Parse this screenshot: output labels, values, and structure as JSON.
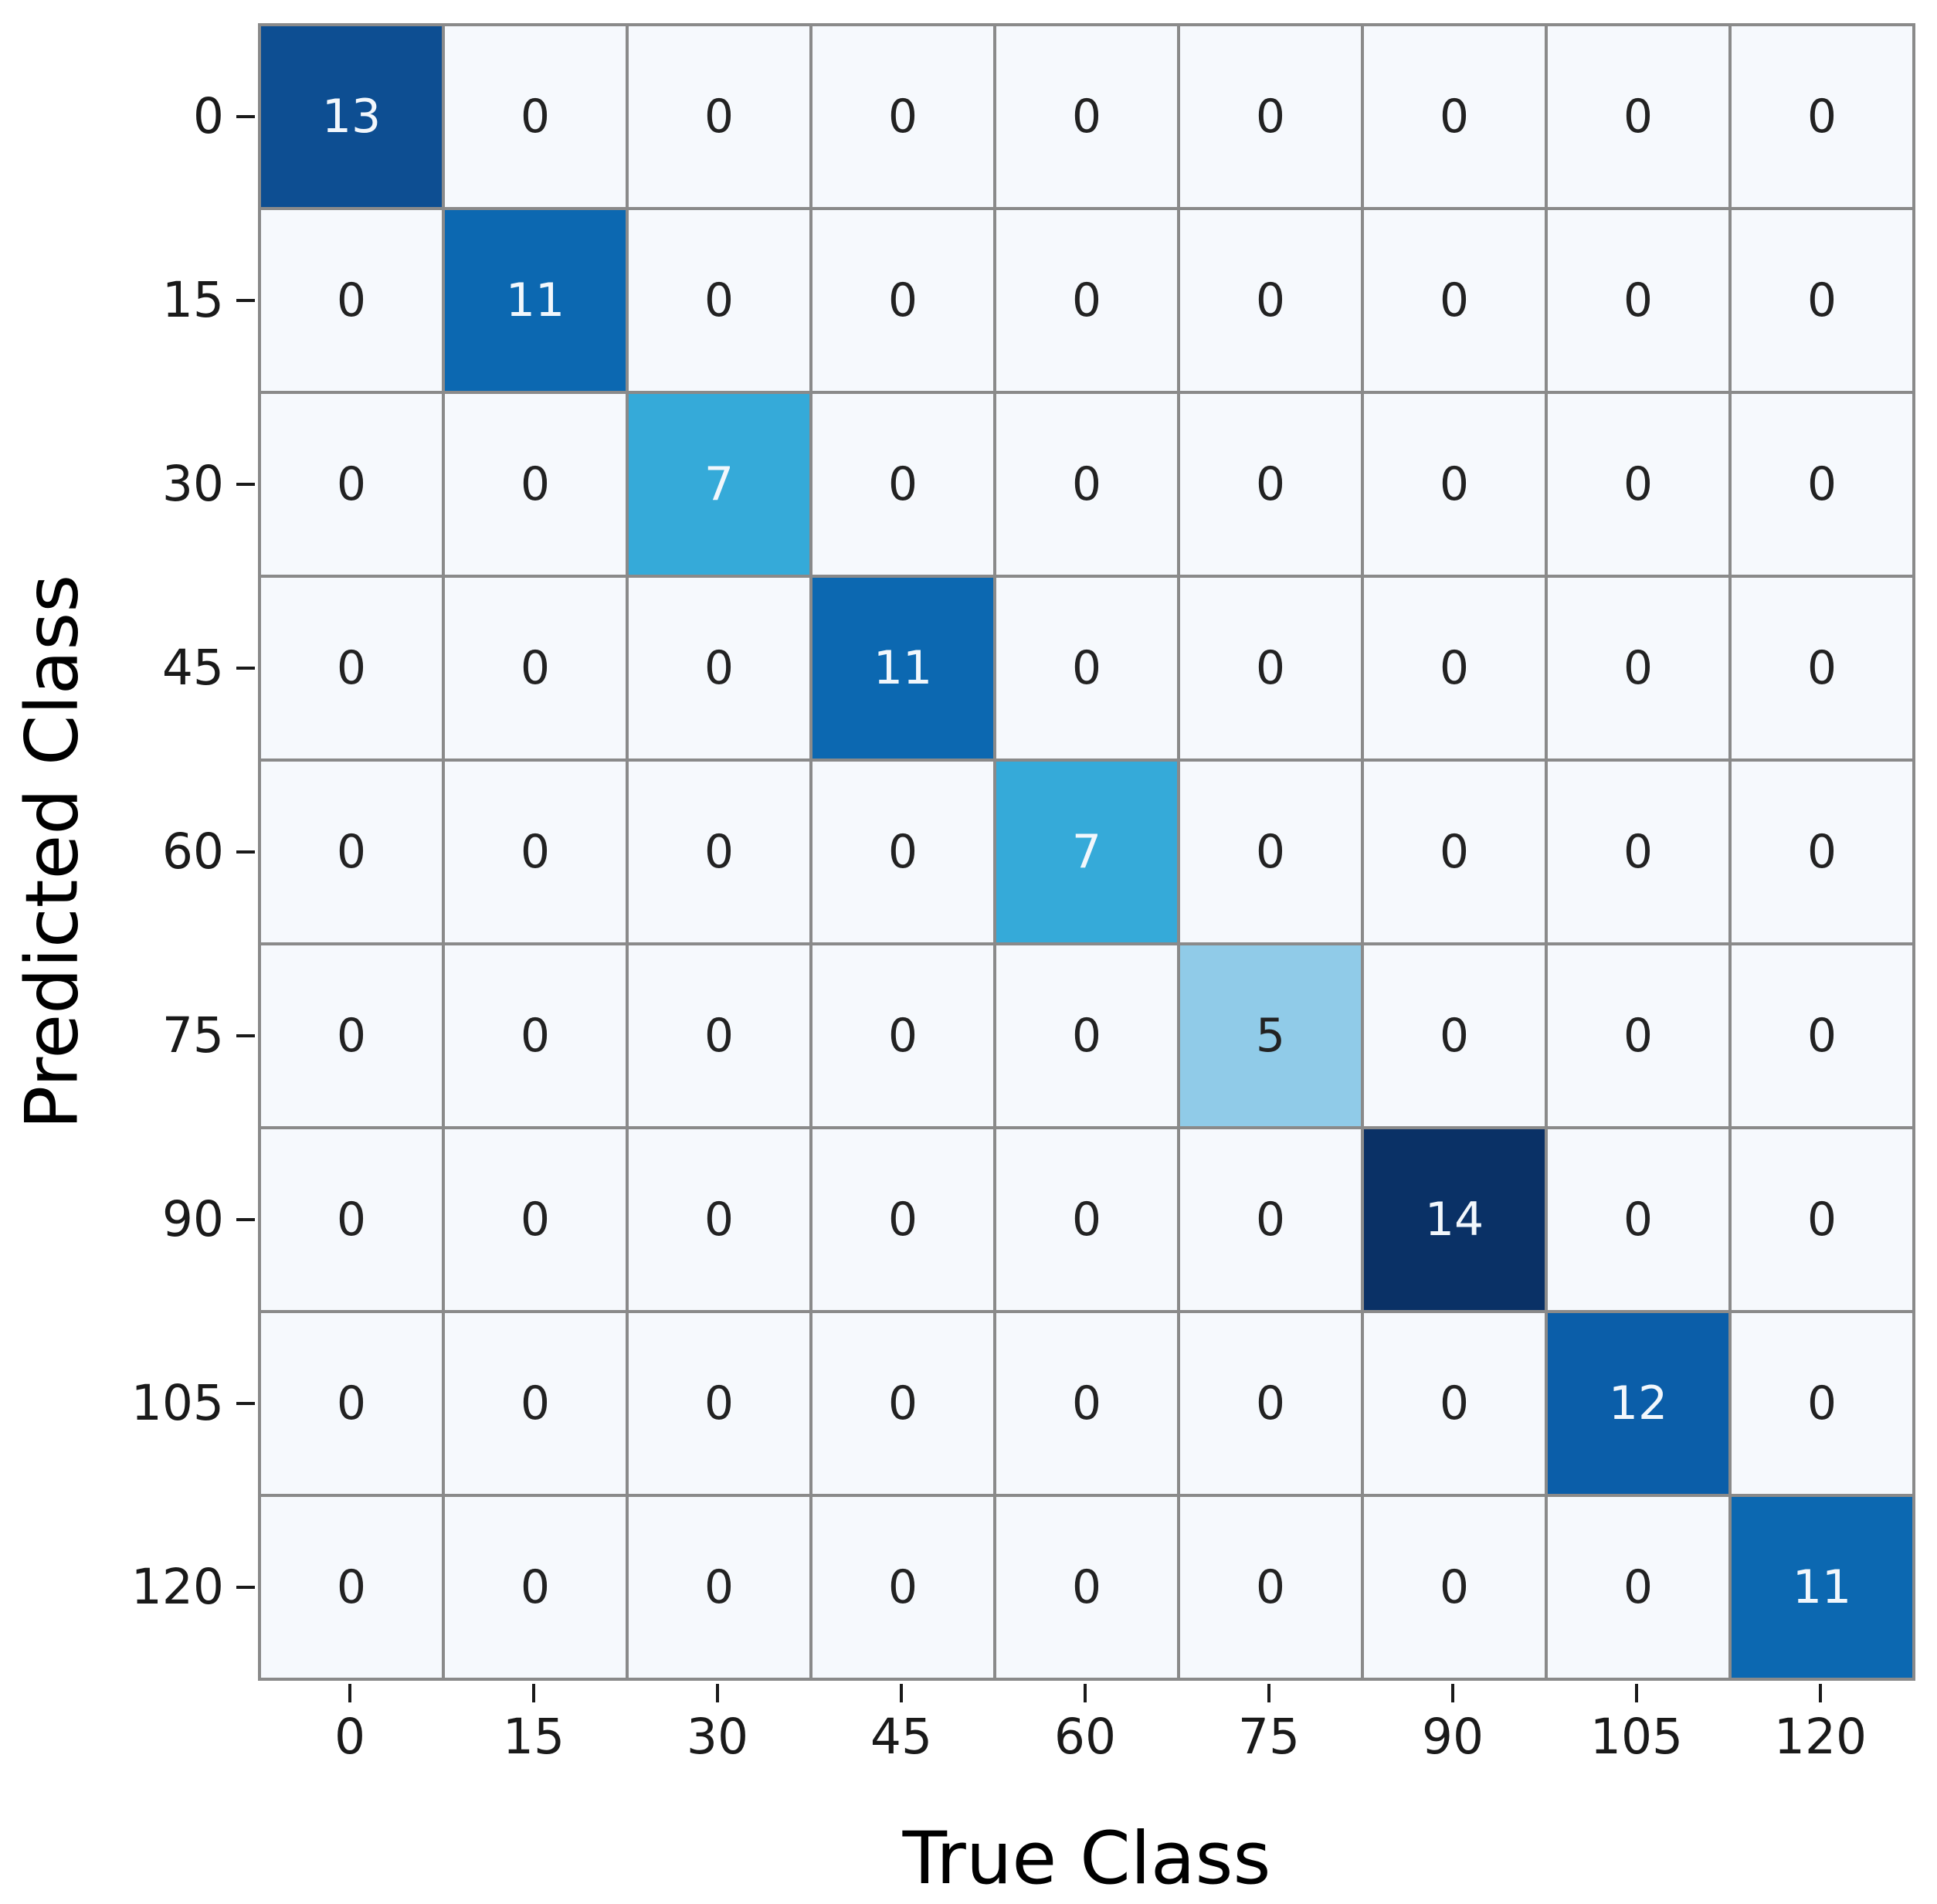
{
  "chart_data": {
    "type": "heatmap",
    "title": "",
    "xlabel": "True Class",
    "ylabel": "Predicted Class",
    "x_tick_labels": [
      "0",
      "15",
      "30",
      "45",
      "60",
      "75",
      "90",
      "105",
      "120"
    ],
    "y_tick_labels": [
      "0",
      "15",
      "30",
      "45",
      "60",
      "75",
      "90",
      "105",
      "120"
    ],
    "matrix": [
      [
        13,
        0,
        0,
        0,
        0,
        0,
        0,
        0,
        0
      ],
      [
        0,
        11,
        0,
        0,
        0,
        0,
        0,
        0,
        0
      ],
      [
        0,
        0,
        7,
        0,
        0,
        0,
        0,
        0,
        0
      ],
      [
        0,
        0,
        0,
        11,
        0,
        0,
        0,
        0,
        0
      ],
      [
        0,
        0,
        0,
        0,
        7,
        0,
        0,
        0,
        0
      ],
      [
        0,
        0,
        0,
        0,
        0,
        5,
        0,
        0,
        0
      ],
      [
        0,
        0,
        0,
        0,
        0,
        0,
        14,
        0,
        0
      ],
      [
        0,
        0,
        0,
        0,
        0,
        0,
        0,
        12,
        0
      ],
      [
        0,
        0,
        0,
        0,
        0,
        0,
        0,
        0,
        11
      ]
    ],
    "diagonal_values": [
      13,
      11,
      7,
      11,
      7,
      5,
      14,
      12,
      11
    ],
    "colormap_name": "blues",
    "value_colors": {
      "0": "#f6f9fd",
      "5": "#90cbe8",
      "7": "#35aad9",
      "11": "#0c68b1",
      "12": "#0b5ea9",
      "13": "#0d4e92",
      "14": "#0a3166"
    },
    "light_text_min": 6,
    "light_text_color": "#f2f7fc",
    "dark_text_color": "#222222",
    "grid_line_color": "#8a8a8a",
    "legend_position": "none",
    "grid": true
  }
}
